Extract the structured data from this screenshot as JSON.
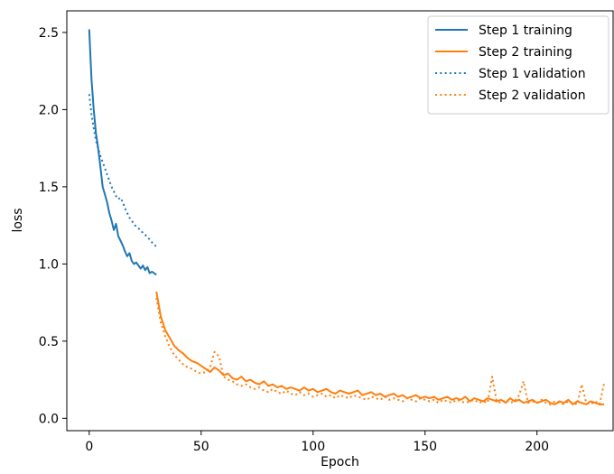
{
  "chart_data": {
    "type": "line",
    "xlabel": "Epoch",
    "ylabel": "loss",
    "xlim": [
      -10,
      234
    ],
    "ylim": [
      -0.08,
      2.64
    ],
    "x_ticks": [
      0,
      50,
      100,
      150,
      200
    ],
    "y_ticks": [
      0.0,
      0.5,
      1.0,
      1.5,
      2.0,
      2.5
    ],
    "x_tick_labels": [
      "0",
      "50",
      "100",
      "150",
      "200"
    ],
    "y_tick_labels": [
      "0.0",
      "0.5",
      "1.0",
      "1.5",
      "2.0",
      "2.5"
    ],
    "grid": false,
    "legend_position": "top-right",
    "series": [
      {
        "name": "Step 1 training",
        "color": "#1f77b4",
        "style": "solid",
        "x": [
          0,
          1,
          2,
          3,
          4,
          5,
          6,
          7,
          8,
          9,
          10,
          11,
          12,
          13,
          14,
          15,
          16,
          17,
          18,
          19,
          20,
          21,
          22,
          23,
          24,
          25,
          26,
          27,
          28,
          29,
          30
        ],
        "y": [
          2.52,
          2.2,
          2.0,
          1.85,
          1.75,
          1.63,
          1.5,
          1.45,
          1.4,
          1.33,
          1.28,
          1.22,
          1.26,
          1.18,
          1.15,
          1.12,
          1.08,
          1.05,
          1.07,
          1.02,
          1.0,
          1.01,
          0.99,
          0.97,
          0.99,
          0.96,
          0.98,
          0.94,
          0.95,
          0.94,
          0.93
        ]
      },
      {
        "name": "Step 2 training",
        "color": "#ff7f0e",
        "style": "solid",
        "x": [
          30,
          32,
          34,
          36,
          38,
          40,
          42,
          44,
          46,
          48,
          50,
          52,
          54,
          56,
          58,
          60,
          62,
          64,
          66,
          68,
          70,
          72,
          74,
          76,
          78,
          80,
          82,
          84,
          86,
          88,
          90,
          92,
          94,
          96,
          98,
          100,
          102,
          104,
          106,
          108,
          110,
          112,
          114,
          116,
          118,
          120,
          122,
          124,
          126,
          128,
          130,
          132,
          134,
          136,
          138,
          140,
          142,
          144,
          146,
          148,
          150,
          152,
          154,
          156,
          158,
          160,
          162,
          164,
          166,
          168,
          170,
          172,
          174,
          176,
          178,
          180,
          182,
          184,
          186,
          188,
          190,
          192,
          194,
          196,
          198,
          200,
          202,
          204,
          206,
          208,
          210,
          212,
          214,
          216,
          218,
          220,
          222,
          224,
          226,
          228,
          230
        ],
        "y": [
          0.82,
          0.66,
          0.57,
          0.52,
          0.47,
          0.44,
          0.42,
          0.39,
          0.37,
          0.36,
          0.34,
          0.32,
          0.3,
          0.33,
          0.31,
          0.28,
          0.29,
          0.26,
          0.25,
          0.27,
          0.24,
          0.25,
          0.23,
          0.22,
          0.24,
          0.21,
          0.22,
          0.2,
          0.21,
          0.19,
          0.2,
          0.19,
          0.18,
          0.2,
          0.18,
          0.19,
          0.17,
          0.18,
          0.19,
          0.17,
          0.16,
          0.18,
          0.17,
          0.16,
          0.17,
          0.18,
          0.15,
          0.16,
          0.17,
          0.15,
          0.16,
          0.14,
          0.15,
          0.16,
          0.14,
          0.15,
          0.13,
          0.14,
          0.15,
          0.13,
          0.14,
          0.13,
          0.14,
          0.12,
          0.13,
          0.14,
          0.12,
          0.13,
          0.12,
          0.14,
          0.11,
          0.13,
          0.12,
          0.11,
          0.13,
          0.12,
          0.11,
          0.12,
          0.1,
          0.13,
          0.11,
          0.12,
          0.1,
          0.11,
          0.12,
          0.1,
          0.11,
          0.12,
          0.1,
          0.09,
          0.11,
          0.1,
          0.12,
          0.09,
          0.11,
          0.1,
          0.09,
          0.11,
          0.1,
          0.09,
          0.09
        ]
      },
      {
        "name": "Step 1 validation",
        "color": "#1f77b4",
        "style": "dotted",
        "x": [
          0,
          1,
          2,
          3,
          4,
          5,
          6,
          7,
          8,
          9,
          10,
          11,
          12,
          13,
          14,
          15,
          16,
          17,
          18,
          19,
          20,
          21,
          22,
          23,
          24,
          25,
          26,
          27,
          28,
          29,
          30
        ],
        "y": [
          2.1,
          1.97,
          1.88,
          1.8,
          1.75,
          1.7,
          1.66,
          1.62,
          1.58,
          1.54,
          1.5,
          1.47,
          1.44,
          1.42,
          1.43,
          1.4,
          1.36,
          1.33,
          1.3,
          1.28,
          1.26,
          1.24,
          1.23,
          1.22,
          1.2,
          1.19,
          1.17,
          1.16,
          1.14,
          1.13,
          1.11
        ]
      },
      {
        "name": "Step 2 validation",
        "color": "#ff7f0e",
        "style": "dotted",
        "x": [
          30,
          32,
          34,
          36,
          38,
          40,
          42,
          44,
          46,
          48,
          50,
          52,
          54,
          56,
          58,
          60,
          62,
          64,
          66,
          68,
          70,
          72,
          74,
          76,
          78,
          80,
          82,
          84,
          86,
          88,
          90,
          92,
          94,
          96,
          98,
          100,
          102,
          104,
          106,
          108,
          110,
          112,
          114,
          116,
          118,
          120,
          122,
          124,
          126,
          128,
          130,
          132,
          134,
          136,
          138,
          140,
          142,
          144,
          146,
          148,
          150,
          152,
          154,
          156,
          158,
          160,
          162,
          164,
          166,
          168,
          170,
          172,
          174,
          176,
          178,
          180,
          182,
          184,
          186,
          188,
          190,
          192,
          194,
          196,
          198,
          200,
          202,
          204,
          206,
          208,
          210,
          212,
          214,
          216,
          218,
          220,
          222,
          224,
          226,
          228,
          230
        ],
        "y": [
          0.78,
          0.62,
          0.53,
          0.46,
          0.41,
          0.38,
          0.35,
          0.33,
          0.32,
          0.3,
          0.29,
          0.3,
          0.33,
          0.43,
          0.4,
          0.27,
          0.25,
          0.24,
          0.22,
          0.21,
          0.22,
          0.2,
          0.19,
          0.2,
          0.18,
          0.17,
          0.19,
          0.17,
          0.16,
          0.18,
          0.16,
          0.15,
          0.17,
          0.15,
          0.16,
          0.14,
          0.15,
          0.16,
          0.14,
          0.15,
          0.13,
          0.15,
          0.14,
          0.13,
          0.15,
          0.14,
          0.13,
          0.12,
          0.14,
          0.13,
          0.12,
          0.14,
          0.12,
          0.13,
          0.12,
          0.11,
          0.13,
          0.12,
          0.11,
          0.13,
          0.12,
          0.11,
          0.12,
          0.1,
          0.12,
          0.11,
          0.1,
          0.12,
          0.11,
          0.1,
          0.11,
          0.12,
          0.1,
          0.11,
          0.1,
          0.27,
          0.11,
          0.1,
          0.12,
          0.1,
          0.11,
          0.15,
          0.24,
          0.1,
          0.11,
          0.1,
          0.12,
          0.1,
          0.09,
          0.11,
          0.1,
          0.09,
          0.11,
          0.1,
          0.09,
          0.22,
          0.1,
          0.09,
          0.11,
          0.09,
          0.23
        ]
      }
    ]
  }
}
